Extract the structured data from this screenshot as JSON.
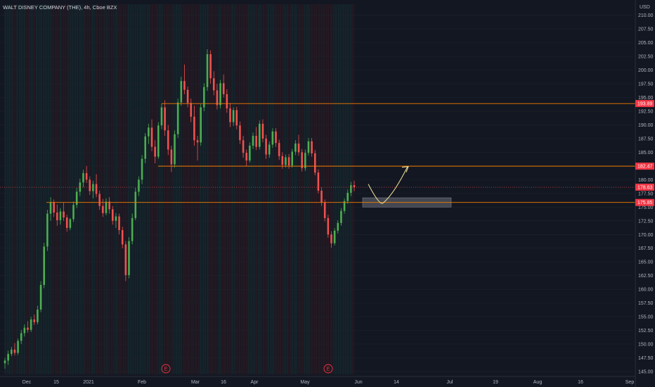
{
  "header": {
    "title": "WALT DISNEY COMPANY (THE), 4h, Cboe BZX",
    "currency": "USD"
  },
  "colors": {
    "background": "#131722",
    "up": "#26a69a",
    "up_bright": "#4caf50",
    "down": "#ef5350",
    "level_line": "#f57c00",
    "price_line": "#ef5350",
    "axis_text": "#b2b5be",
    "zone": "#6b6f7a",
    "arrow": "#e6d690"
  },
  "chart_data": {
    "type": "candlestick",
    "title": "WALT DISNEY COMPANY (THE), 4h, Cboe BZX",
    "y_unit": "USD",
    "ylim": [
      145.0,
      211.5
    ],
    "y_ticks": [
      145,
      147.5,
      150,
      152.5,
      155,
      157.5,
      160,
      162.5,
      165,
      167.5,
      170,
      172.5,
      175,
      177.5,
      180,
      182.5,
      185,
      187.5,
      190,
      192.5,
      195,
      197.5,
      200,
      202.5,
      205,
      207.5,
      210
    ],
    "x_ticks": [
      "Dec",
      "15",
      "2021",
      "Feb",
      "Mar",
      "16",
      "Apr",
      "May",
      "Jun",
      "14",
      "Jul",
      "19",
      "Aug",
      "16",
      "Sep"
    ],
    "horizontal_levels": [
      193.89,
      182.47,
      175.85
    ],
    "last_price": 178.63,
    "price_badges": [
      "193.89",
      "182.47",
      "178.63",
      "175.85"
    ],
    "earnings_markers": [
      "E",
      "E"
    ],
    "series": [
      {
        "name": "",
        "columns": [
          "open",
          "high",
          "low",
          "close"
        ],
        "candles": [
          [
            146.5,
            147.5,
            145.5,
            147.0
          ],
          [
            147.0,
            148.8,
            146.2,
            148.2
          ],
          [
            148.2,
            149.5,
            147.8,
            149.0
          ],
          [
            149.0,
            150.2,
            147.9,
            148.4
          ],
          [
            148.4,
            151.0,
            148.0,
            150.6
          ],
          [
            150.6,
            152.6,
            150.0,
            152.0
          ],
          [
            152.0,
            153.6,
            151.4,
            153.0
          ],
          [
            153.0,
            154.2,
            152.1,
            152.6
          ],
          [
            152.6,
            155.0,
            152.2,
            154.5
          ],
          [
            154.5,
            155.4,
            153.5,
            154.0
          ],
          [
            154.0,
            157.0,
            153.6,
            156.3
          ],
          [
            156.3,
            161.5,
            155.8,
            160.8
          ],
          [
            160.8,
            168.5,
            160.2,
            167.8
          ],
          [
            167.8,
            174.5,
            167.0,
            173.8
          ],
          [
            173.8,
            176.8,
            172.5,
            175.9
          ],
          [
            175.9,
            176.4,
            173.2,
            174.0
          ],
          [
            174.0,
            175.5,
            171.6,
            172.6
          ],
          [
            172.6,
            174.8,
            171.8,
            174.2
          ],
          [
            174.2,
            175.8,
            172.5,
            173.1
          ],
          [
            173.1,
            173.6,
            170.5,
            171.2
          ],
          [
            171.2,
            173.0,
            170.8,
            172.8
          ],
          [
            172.8,
            176.0,
            172.3,
            175.4
          ],
          [
            175.4,
            178.5,
            174.8,
            177.8
          ],
          [
            177.8,
            180.2,
            177.0,
            179.5
          ],
          [
            179.5,
            181.8,
            178.6,
            181.2
          ],
          [
            181.2,
            182.5,
            179.4,
            180.0
          ],
          [
            180.0,
            180.6,
            177.2,
            177.9
          ],
          [
            177.9,
            179.8,
            176.6,
            179.2
          ],
          [
            179.2,
            181.0,
            176.8,
            177.4
          ],
          [
            177.4,
            178.0,
            174.5,
            175.2
          ],
          [
            175.2,
            176.5,
            173.2,
            173.9
          ],
          [
            173.9,
            176.6,
            173.5,
            176.0
          ],
          [
            176.0,
            176.8,
            173.8,
            174.6
          ],
          [
            174.6,
            175.2,
            171.8,
            172.5
          ],
          [
            172.5,
            173.9,
            171.2,
            173.3
          ],
          [
            173.3,
            173.8,
            170.0,
            170.8
          ],
          [
            170.8,
            171.4,
            167.5,
            168.2
          ],
          [
            168.2,
            168.8,
            161.5,
            162.6
          ],
          [
            162.6,
            169.5,
            162.0,
            168.8
          ],
          [
            168.8,
            173.8,
            168.2,
            173.0
          ],
          [
            173.0,
            178.5,
            172.6,
            177.8
          ],
          [
            177.8,
            180.6,
            177.0,
            180.0
          ],
          [
            180.0,
            184.5,
            179.2,
            183.8
          ],
          [
            183.8,
            188.5,
            183.0,
            187.9
          ],
          [
            187.9,
            190.2,
            186.5,
            189.5
          ],
          [
            189.5,
            191.0,
            185.2,
            186.0
          ],
          [
            186.0,
            187.2,
            183.0,
            184.2
          ],
          [
            184.2,
            190.5,
            183.8,
            189.9
          ],
          [
            189.9,
            193.9,
            189.2,
            193.2
          ],
          [
            193.2,
            194.5,
            188.0,
            189.0
          ],
          [
            189.0,
            190.0,
            184.5,
            185.5
          ],
          [
            185.5,
            186.2,
            181.4,
            182.8
          ],
          [
            182.8,
            189.0,
            182.2,
            188.3
          ],
          [
            188.3,
            194.8,
            187.6,
            194.1
          ],
          [
            194.1,
            198.8,
            193.5,
            198.0
          ],
          [
            198.0,
            201.0,
            195.6,
            196.4
          ],
          [
            196.4,
            197.0,
            193.2,
            194.0
          ],
          [
            194.0,
            194.8,
            190.5,
            191.5
          ],
          [
            191.5,
            193.5,
            186.2,
            187.2
          ],
          [
            187.2,
            188.0,
            183.5,
            186.8
          ],
          [
            186.8,
            193.8,
            186.2,
            193.2
          ],
          [
            193.2,
            197.6,
            192.5,
            196.9
          ],
          [
            196.9,
            203.8,
            196.2,
            202.9
          ],
          [
            202.9,
            203.6,
            197.5,
            198.5
          ],
          [
            198.5,
            199.8,
            195.4,
            196.3
          ],
          [
            196.3,
            197.5,
            192.8,
            193.6
          ],
          [
            193.6,
            198.2,
            193.0,
            197.6
          ],
          [
            197.6,
            199.2,
            195.0,
            195.6
          ],
          [
            195.6,
            196.5,
            192.2,
            193.0
          ],
          [
            193.0,
            194.0,
            189.6,
            190.5
          ],
          [
            190.5,
            193.2,
            189.8,
            192.7
          ],
          [
            192.7,
            193.3,
            189.2,
            189.9
          ],
          [
            189.9,
            190.6,
            186.5,
            187.2
          ],
          [
            187.2,
            188.0,
            184.0,
            184.9
          ],
          [
            184.9,
            185.5,
            182.5,
            183.5
          ],
          [
            183.5,
            186.8,
            183.1,
            186.2
          ],
          [
            186.2,
            188.6,
            185.6,
            188.0
          ],
          [
            188.0,
            189.6,
            185.4,
            186.0
          ],
          [
            186.0,
            190.8,
            185.5,
            190.2
          ],
          [
            190.2,
            191.0,
            186.8,
            187.5
          ],
          [
            187.5,
            188.2,
            183.8,
            184.6
          ],
          [
            184.6,
            187.0,
            184.0,
            186.4
          ],
          [
            186.4,
            189.4,
            185.8,
            188.8
          ],
          [
            188.8,
            189.4,
            186.0,
            186.7
          ],
          [
            186.7,
            187.3,
            183.6,
            184.3
          ],
          [
            184.3,
            185.0,
            182.0,
            182.7
          ],
          [
            182.7,
            184.6,
            182.2,
            184.1
          ],
          [
            184.1,
            184.7,
            182.0,
            182.6
          ],
          [
            182.6,
            185.6,
            182.2,
            185.1
          ],
          [
            185.1,
            187.2,
            184.5,
            186.6
          ],
          [
            186.6,
            188.2,
            184.4,
            185.0
          ],
          [
            185.0,
            185.6,
            181.5,
            182.1
          ],
          [
            182.1,
            185.5,
            181.6,
            184.9
          ],
          [
            184.9,
            187.6,
            184.4,
            187.0
          ],
          [
            187.0,
            187.6,
            184.2,
            184.8
          ],
          [
            184.8,
            185.4,
            180.8,
            181.3
          ],
          [
            181.3,
            181.9,
            177.5,
            178.0
          ],
          [
            178.0,
            178.6,
            175.2,
            175.8
          ],
          [
            175.8,
            176.4,
            172.4,
            173.0
          ],
          [
            173.0,
            173.6,
            169.4,
            170.0
          ],
          [
            170.0,
            170.6,
            167.6,
            168.4
          ],
          [
            168.4,
            171.2,
            168.0,
            170.7
          ],
          [
            170.7,
            172.6,
            170.2,
            172.1
          ],
          [
            172.1,
            174.8,
            171.6,
            174.3
          ],
          [
            174.3,
            176.6,
            173.8,
            176.1
          ],
          [
            176.1,
            178.2,
            175.6,
            177.6
          ],
          [
            177.6,
            179.6,
            177.0,
            179.0
          ],
          [
            179.0,
            179.8,
            177.9,
            178.63
          ]
        ]
      }
    ],
    "annotations": [
      {
        "type": "zone",
        "low": 175.0,
        "high": 176.7
      },
      {
        "type": "arrow",
        "shape": "V then up-right",
        "points_price": [
          179.2,
          176.0,
          182.4
        ]
      }
    ]
  }
}
